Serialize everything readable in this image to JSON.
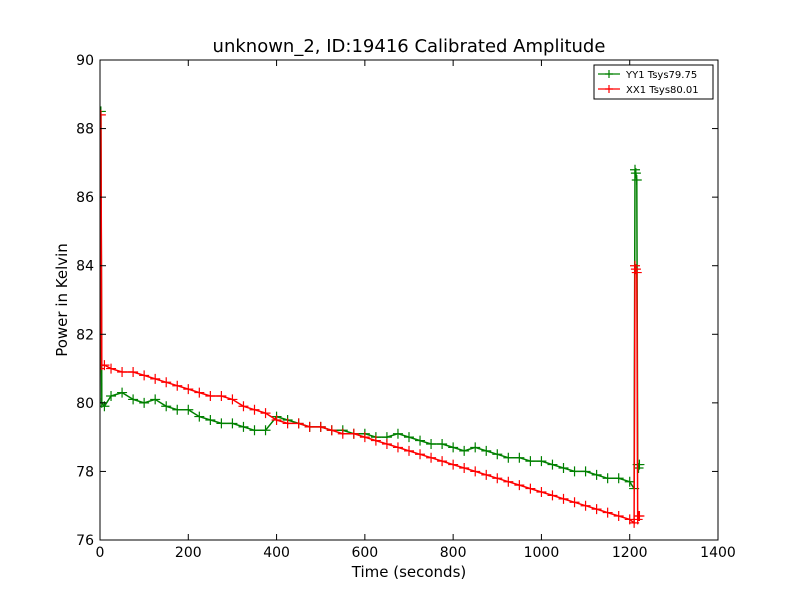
{
  "chart_data": {
    "type": "line",
    "title": "unknown_2, ID:19416 Calibrated Amplitude",
    "xlabel": "Time (seconds)",
    "ylabel": "Power in Kelvin",
    "xlim": [
      0,
      1400
    ],
    "ylim": [
      76,
      90
    ],
    "xticks": [
      0,
      200,
      400,
      600,
      800,
      1000,
      1200,
      1400
    ],
    "yticks": [
      76,
      78,
      80,
      82,
      84,
      86,
      88,
      90
    ],
    "grid": false,
    "legend_position": "top-right",
    "marker": "+",
    "series": [
      {
        "name": "YY1 Tsys79.75",
        "color": "#008000",
        "x": [
          0,
          2,
          4,
          10,
          25,
          50,
          75,
          100,
          125,
          150,
          175,
          200,
          225,
          250,
          275,
          300,
          325,
          350,
          375,
          400,
          425,
          450,
          475,
          500,
          525,
          550,
          575,
          600,
          625,
          650,
          675,
          700,
          725,
          750,
          775,
          800,
          825,
          850,
          875,
          900,
          925,
          950,
          975,
          1000,
          1025,
          1050,
          1075,
          1100,
          1125,
          1150,
          1175,
          1200,
          1210,
          1212,
          1214,
          1216,
          1218,
          1220,
          1222
        ],
        "y": [
          80.0,
          88.5,
          80.0,
          79.9,
          80.2,
          80.3,
          80.1,
          80.0,
          80.1,
          79.9,
          79.8,
          79.8,
          79.6,
          79.5,
          79.4,
          79.4,
          79.3,
          79.2,
          79.2,
          79.6,
          79.5,
          79.4,
          79.3,
          79.3,
          79.2,
          79.2,
          79.1,
          79.1,
          79.0,
          79.0,
          79.1,
          79.0,
          78.9,
          78.8,
          78.8,
          78.7,
          78.6,
          78.7,
          78.6,
          78.5,
          78.4,
          78.4,
          78.3,
          78.3,
          78.2,
          78.1,
          78.0,
          78.0,
          77.9,
          77.8,
          77.8,
          77.7,
          77.5,
          86.8,
          86.7,
          86.5,
          78.2,
          78.1,
          78.2
        ]
      },
      {
        "name": "XX1 Tsys80.01",
        "color": "#ff0000",
        "x": [
          0,
          2,
          4,
          10,
          25,
          50,
          75,
          100,
          125,
          150,
          175,
          200,
          225,
          250,
          275,
          300,
          325,
          350,
          375,
          400,
          425,
          450,
          475,
          500,
          525,
          550,
          575,
          600,
          625,
          650,
          675,
          700,
          725,
          750,
          775,
          800,
          825,
          850,
          875,
          900,
          925,
          950,
          975,
          1000,
          1025,
          1050,
          1075,
          1100,
          1125,
          1150,
          1175,
          1200,
          1210,
          1212,
          1214,
          1216,
          1218,
          1220,
          1222
        ],
        "y": [
          81.0,
          88.4,
          81.1,
          81.1,
          81.0,
          80.9,
          80.9,
          80.8,
          80.7,
          80.6,
          80.5,
          80.4,
          80.3,
          80.2,
          80.2,
          80.1,
          79.9,
          79.8,
          79.7,
          79.5,
          79.4,
          79.4,
          79.3,
          79.3,
          79.2,
          79.1,
          79.1,
          79.0,
          78.9,
          78.8,
          78.7,
          78.6,
          78.5,
          78.4,
          78.3,
          78.2,
          78.1,
          78.0,
          77.9,
          77.8,
          77.7,
          77.6,
          77.5,
          77.4,
          77.3,
          77.2,
          77.1,
          77.0,
          76.9,
          76.8,
          76.7,
          76.6,
          76.5,
          84.0,
          83.9,
          83.8,
          76.6,
          76.7,
          76.7
        ]
      }
    ]
  }
}
